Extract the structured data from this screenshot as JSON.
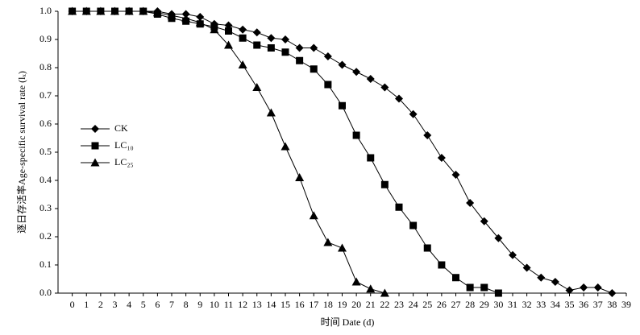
{
  "chart_data": {
    "type": "line",
    "x_label": "时间 Date (d)",
    "y_label": "逐日存活率Age-specific survival rate (lₓ)",
    "x": [
      0,
      1,
      2,
      3,
      4,
      5,
      6,
      7,
      8,
      9,
      10,
      11,
      12,
      13,
      14,
      15,
      16,
      17,
      18,
      19,
      20,
      21,
      22,
      23,
      24,
      25,
      26,
      27,
      28,
      29,
      30,
      31,
      32,
      33,
      34,
      35,
      36,
      37,
      38
    ],
    "series": [
      {
        "name": "CK",
        "color": "#000000",
        "marker": "diamond",
        "values": [
          1,
          1,
          1,
          1,
          1,
          1,
          1,
          0.99,
          0.99,
          0.98,
          0.955,
          0.95,
          0.935,
          0.925,
          0.905,
          0.9,
          0.87,
          0.87,
          0.84,
          0.81,
          0.785,
          0.76,
          0.73,
          0.69,
          0.635,
          0.56,
          0.48,
          0.42,
          0.32,
          0.255,
          0.195,
          0.135,
          0.09,
          0.055,
          0.04,
          0.01,
          0.02,
          0.02,
          0
        ]
      },
      {
        "name": "LC₁₀",
        "color": "#000000",
        "marker": "square",
        "values": [
          1,
          1,
          1,
          1,
          1,
          1,
          0.99,
          0.975,
          0.965,
          0.955,
          0.945,
          0.93,
          0.905,
          0.88,
          0.87,
          0.855,
          0.825,
          0.795,
          0.74,
          0.665,
          0.56,
          0.48,
          0.385,
          0.305,
          0.24,
          0.16,
          0.1,
          0.055,
          0.02,
          0.02,
          0,
          null,
          null,
          null,
          null,
          null,
          null,
          null,
          null
        ]
      },
      {
        "name": "LC₂₅",
        "color": "#000000",
        "marker": "triangle",
        "values": [
          1,
          1,
          1,
          1,
          1,
          1,
          0.995,
          0.985,
          0.975,
          0.96,
          0.935,
          0.88,
          0.81,
          0.73,
          0.64,
          0.52,
          0.41,
          0.275,
          0.18,
          0.16,
          0.04,
          0.015,
          0,
          null,
          null,
          null,
          null,
          null,
          null,
          null,
          null,
          null,
          null,
          null,
          null,
          null,
          null,
          null,
          null
        ]
      }
    ],
    "xlim": [
      -1,
      39
    ],
    "xticks": [
      0,
      1,
      2,
      3,
      4,
      5,
      6,
      7,
      8,
      9,
      10,
      11,
      12,
      13,
      14,
      15,
      16,
      17,
      18,
      19,
      20,
      21,
      22,
      23,
      24,
      25,
      26,
      27,
      28,
      29,
      30,
      31,
      32,
      33,
      34,
      35,
      36,
      37,
      38,
      39
    ],
    "ylim": [
      0,
      1
    ],
    "yticks": [
      {
        "value": 0,
        "label": "0.0"
      },
      0.1,
      0.2,
      0.3,
      0.4,
      0.5,
      0.6,
      0.7,
      0.8,
      0.9,
      {
        "value": 1,
        "label": "1.0"
      }
    ],
    "grid": false,
    "legend": "left"
  }
}
